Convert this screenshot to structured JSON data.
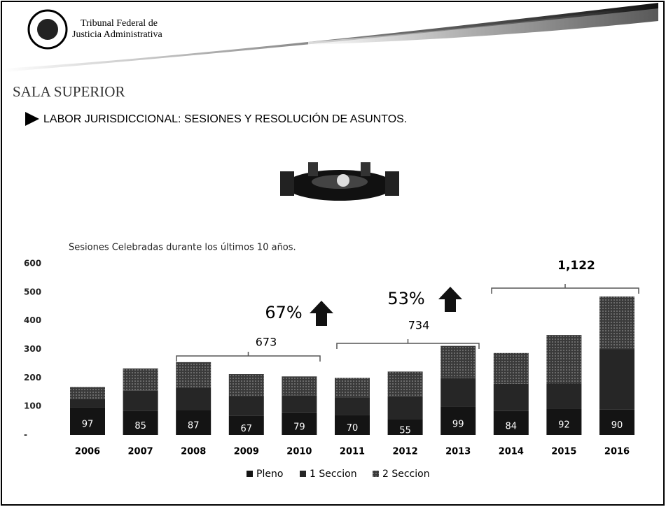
{
  "header": {
    "org_line1": "Tribunal Federal de",
    "org_line2": "Justicia Administrativa",
    "section": "SALA SUPERIOR",
    "subtitle": "LABOR JURISDICCIONAL: SESIONES Y RESOLUCIÓN DE ASUNTOS."
  },
  "chart_data": {
    "type": "stacked-bar",
    "title": "Sesiones Celebradas durante los últimos 10 años.",
    "categories": [
      "2006",
      "2007",
      "2008",
      "2009",
      "2010",
      "2011",
      "2012",
      "2013",
      "2014",
      "2015",
      "2016"
    ],
    "series": [
      {
        "name": "Pleno",
        "color": "#141414",
        "values": [
          97,
          85,
          87,
          67,
          79,
          70,
          55,
          99,
          84,
          92,
          90
        ]
      },
      {
        "name": "1 Seccion",
        "color": "#262626",
        "values": [
          30,
          70,
          80,
          70,
          60,
          62,
          80,
          100,
          95,
          88,
          210
        ]
      },
      {
        "name": "2 Seccion",
        "color": "#555555",
        "values": [
          41,
          78,
          88,
          76,
          66,
          68,
          87,
          113,
          108,
          170,
          185
        ]
      }
    ],
    "ylim": [
      0,
      600
    ],
    "yticks": [
      {
        "value": 0,
        "label": "-"
      },
      100,
      200,
      300,
      400,
      500,
      600
    ],
    "annotations": [
      "673",
      "67%",
      "734",
      "53%",
      "1,122"
    ]
  }
}
